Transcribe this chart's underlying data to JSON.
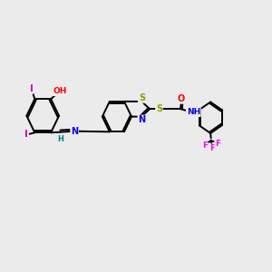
{
  "background_color": "#ebebeb",
  "bond_color": "#000000",
  "atom_colors": {
    "I": "#cc00cc",
    "O": "#ff0000",
    "N": "#0000ff",
    "S": "#999900",
    "F": "#ff00ff",
    "H": "#008080",
    "C": "#000000"
  },
  "figsize": [
    3.0,
    3.0
  ],
  "dpi": 100
}
